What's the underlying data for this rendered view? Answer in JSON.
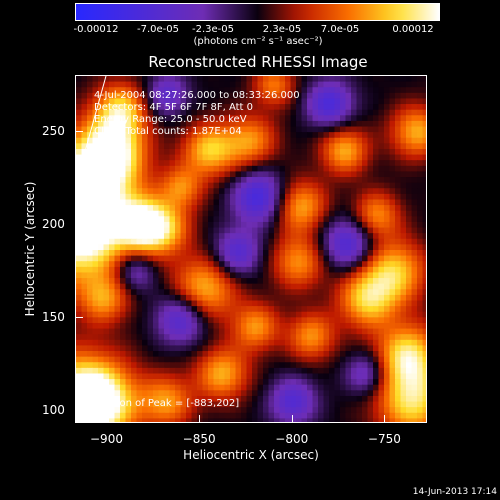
{
  "chart_data": {
    "type": "heatmap",
    "title": "Reconstructed RHESSI Image",
    "xlabel": "Heliocentric X (arcsec)",
    "ylabel": "Heliocentric Y (arcsec)",
    "xlim": [
      -917,
      -727
    ],
    "ylim": [
      93,
      280
    ],
    "x_ticks": [
      -900,
      -850,
      -800,
      -750
    ],
    "y_ticks": [
      100,
      150,
      200,
      250
    ],
    "colorbar": {
      "ticks": [
        "-0.00012",
        "-7.0e-05",
        "-2.3e-05",
        "2.3e-05",
        "7.0e-05",
        "0.00012"
      ],
      "units": "(photons cm⁻² s⁻¹ asec⁻²)",
      "range": [
        -0.00012,
        0.00012
      ]
    },
    "annotations": {
      "time_range": "4-Jul-2004 08:27:26.000 to 08:33:26.000",
      "detectors": "Detectors: 4F 5F 6F 7F 8F, Att 0",
      "energy": "Energy Range: 25.0 - 50.0 keV",
      "clean": "Clean    Total counts: 1.87E+04",
      "peak": "Position of Peak = [-883,202]"
    },
    "peak_position": [
      -883,
      202
    ]
  },
  "footer_timestamp": "14-Jun-2013 17:14"
}
